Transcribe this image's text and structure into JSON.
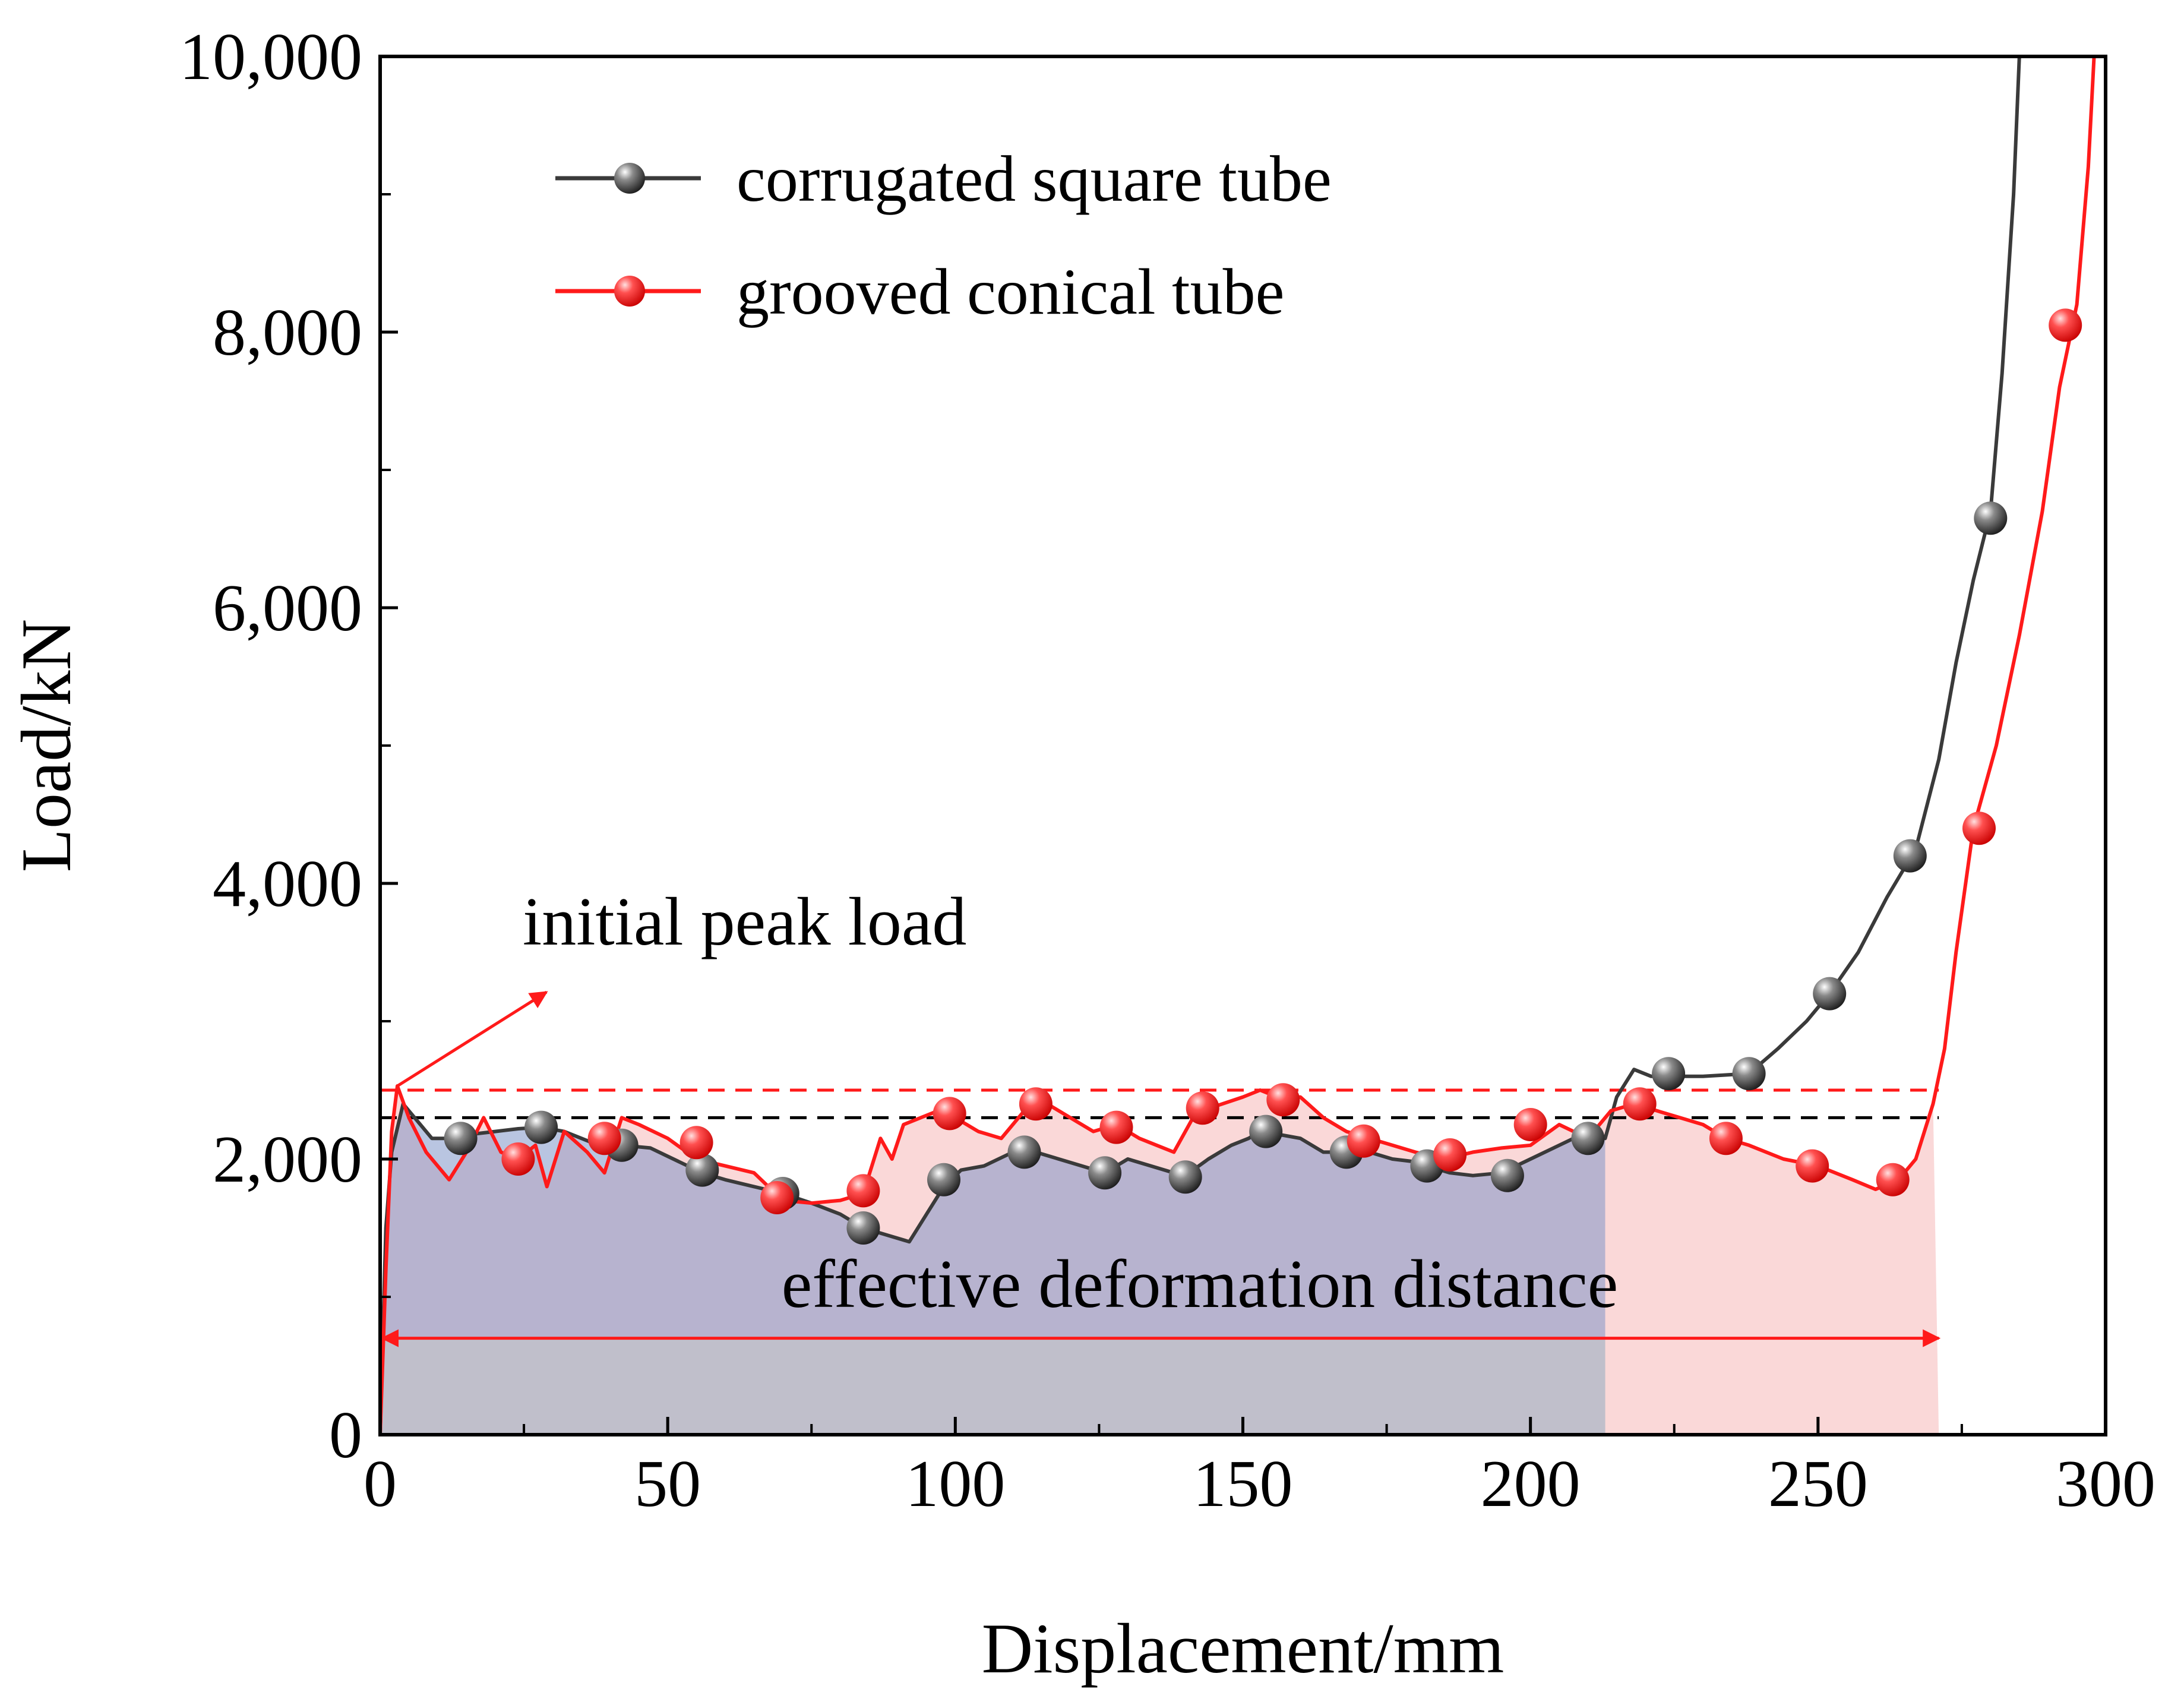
{
  "chart_data": {
    "type": "line",
    "title": "",
    "xlabel": "Displacement/mm",
    "ylabel": "Load/kN",
    "xlim": [
      0,
      300
    ],
    "ylim": [
      0,
      10000
    ],
    "xticks": [
      0,
      50,
      100,
      150,
      200,
      250,
      300
    ],
    "xtick_labels": [
      "0",
      "50",
      "100",
      "150",
      "200",
      "250",
      "300"
    ],
    "yticks": [
      0,
      2000,
      4000,
      6000,
      8000,
      10000
    ],
    "ytick_labels": [
      "0",
      "2,000",
      "4,000",
      "6,000",
      "8,000",
      "10,000"
    ],
    "grid": false,
    "legend_position": "top-left",
    "series": [
      {
        "name": "corrugated square tube",
        "color": "#3a3a3a",
        "marker_color": "#555555",
        "fill_end_x": 213,
        "fill_color": "#7f95c8",
        "line": [
          [
            0,
            0
          ],
          [
            1,
            1500
          ],
          [
            2,
            2050
          ],
          [
            4,
            2400
          ],
          [
            6,
            2300
          ],
          [
            9,
            2150
          ],
          [
            13,
            2150
          ],
          [
            16,
            2180
          ],
          [
            20,
            2200
          ],
          [
            24,
            2220
          ],
          [
            28,
            2230
          ],
          [
            32,
            2200
          ],
          [
            35,
            2150
          ],
          [
            38,
            2100
          ],
          [
            42,
            2100
          ],
          [
            47,
            2080
          ],
          [
            51,
            2000
          ],
          [
            56,
            1900
          ],
          [
            60,
            1850
          ],
          [
            65,
            1800
          ],
          [
            70,
            1750
          ],
          [
            75,
            1680
          ],
          [
            80,
            1600
          ],
          [
            84,
            1500
          ],
          [
            88,
            1450
          ],
          [
            92,
            1400
          ],
          [
            95,
            1600
          ],
          [
            98,
            1800
          ],
          [
            101,
            1920
          ],
          [
            105,
            1950
          ],
          [
            110,
            2050
          ],
          [
            114,
            2050
          ],
          [
            118,
            2000
          ],
          [
            122,
            1950
          ],
          [
            126,
            1900
          ],
          [
            130,
            2000
          ],
          [
            134,
            1950
          ],
          [
            138,
            1900
          ],
          [
            140,
            1880
          ],
          [
            144,
            2000
          ],
          [
            148,
            2100
          ],
          [
            151,
            2150
          ],
          [
            153,
            2200
          ],
          [
            156,
            2180
          ],
          [
            160,
            2150
          ],
          [
            164,
            2050
          ],
          [
            168,
            2050
          ],
          [
            172,
            2050
          ],
          [
            176,
            2000
          ],
          [
            180,
            1980
          ],
          [
            182,
            1950
          ],
          [
            186,
            1900
          ],
          [
            190,
            1880
          ],
          [
            195,
            1900
          ],
          [
            200,
            2000
          ],
          [
            205,
            2100
          ],
          [
            210,
            2200
          ],
          [
            213,
            2150
          ],
          [
            215,
            2450
          ],
          [
            218,
            2650
          ],
          [
            221,
            2600
          ],
          [
            225,
            2600
          ],
          [
            230,
            2600
          ],
          [
            238,
            2620
          ],
          [
            243,
            2800
          ],
          [
            248,
            3000
          ],
          [
            252,
            3200
          ],
          [
            257,
            3500
          ],
          [
            262,
            3900
          ],
          [
            267,
            4250
          ],
          [
            271,
            4900
          ],
          [
            274,
            5600
          ],
          [
            277,
            6200
          ],
          [
            280,
            6700
          ],
          [
            282,
            7700
          ],
          [
            284,
            9000
          ],
          [
            285,
            10000
          ]
        ],
        "markers": [
          [
            14,
            2150
          ],
          [
            28,
            2230
          ],
          [
            42,
            2100
          ],
          [
            56,
            1920
          ],
          [
            70,
            1750
          ],
          [
            84,
            1500
          ],
          [
            98,
            1850
          ],
          [
            112,
            2050
          ],
          [
            126,
            1900
          ],
          [
            140,
            1870
          ],
          [
            154,
            2200
          ],
          [
            168,
            2050
          ],
          [
            182,
            1950
          ],
          [
            196,
            1880
          ],
          [
            210,
            2150
          ],
          [
            224,
            2620
          ],
          [
            238,
            2620
          ],
          [
            252,
            3200
          ],
          [
            266,
            4200
          ],
          [
            280,
            6650
          ]
        ]
      },
      {
        "name": "grooved conical tube",
        "color": "#ff1a1a",
        "marker_color": "#ff2020",
        "fill_end_x": 271,
        "fill_color": "#f4a9a9",
        "line": [
          [
            0,
            0
          ],
          [
            1,
            1200
          ],
          [
            2,
            2200
          ],
          [
            3,
            2530
          ],
          [
            5,
            2300
          ],
          [
            8,
            2050
          ],
          [
            12,
            1850
          ],
          [
            15,
            2050
          ],
          [
            18,
            2300
          ],
          [
            21,
            2050
          ],
          [
            24,
            2000
          ],
          [
            27,
            2100
          ],
          [
            29,
            1800
          ],
          [
            32,
            2200
          ],
          [
            36,
            2050
          ],
          [
            39,
            1900
          ],
          [
            42,
            2300
          ],
          [
            45,
            2250
          ],
          [
            50,
            2150
          ],
          [
            55,
            2000
          ],
          [
            60,
            1950
          ],
          [
            65,
            1900
          ],
          [
            70,
            1700
          ],
          [
            75,
            1680
          ],
          [
            80,
            1700
          ],
          [
            84,
            1750
          ],
          [
            87,
            2150
          ],
          [
            89,
            2000
          ],
          [
            91,
            2250
          ],
          [
            94,
            2300
          ],
          [
            97,
            2350
          ],
          [
            100,
            2300
          ],
          [
            104,
            2200
          ],
          [
            108,
            2150
          ],
          [
            112,
            2350
          ],
          [
            116,
            2400
          ],
          [
            120,
            2300
          ],
          [
            124,
            2200
          ],
          [
            128,
            2250
          ],
          [
            132,
            2150
          ],
          [
            135,
            2100
          ],
          [
            138,
            2050
          ],
          [
            142,
            2350
          ],
          [
            145,
            2380
          ],
          [
            150,
            2450
          ],
          [
            153,
            2500
          ],
          [
            156,
            2450
          ],
          [
            160,
            2450
          ],
          [
            164,
            2300
          ],
          [
            168,
            2200
          ],
          [
            172,
            2150
          ],
          [
            176,
            2100
          ],
          [
            180,
            2050
          ],
          [
            185,
            2000
          ],
          [
            190,
            2050
          ],
          [
            195,
            2080
          ],
          [
            200,
            2100
          ],
          [
            205,
            2250
          ],
          [
            210,
            2150
          ],
          [
            214,
            2350
          ],
          [
            218,
            2400
          ],
          [
            222,
            2350
          ],
          [
            226,
            2300
          ],
          [
            230,
            2250
          ],
          [
            234,
            2150
          ],
          [
            238,
            2100
          ],
          [
            244,
            2000
          ],
          [
            250,
            1950
          ],
          [
            256,
            1850
          ],
          [
            260,
            1780
          ],
          [
            264,
            1850
          ],
          [
            267,
            2000
          ],
          [
            270,
            2400
          ],
          [
            272,
            2800
          ],
          [
            274,
            3500
          ],
          [
            277,
            4400
          ],
          [
            281,
            5000
          ],
          [
            285,
            5800
          ],
          [
            289,
            6700
          ],
          [
            292,
            7600
          ],
          [
            295,
            8200
          ],
          [
            297,
            9200
          ],
          [
            298,
            10000
          ]
        ],
        "markers": [
          [
            24,
            2000
          ],
          [
            39,
            2150
          ],
          [
            55,
            2120
          ],
          [
            69,
            1720
          ],
          [
            84,
            1770
          ],
          [
            99,
            2330
          ],
          [
            114,
            2400
          ],
          [
            128,
            2230
          ],
          [
            143,
            2370
          ],
          [
            157,
            2430
          ],
          [
            171,
            2130
          ],
          [
            186,
            2030
          ],
          [
            200,
            2250
          ],
          [
            219,
            2400
          ],
          [
            234,
            2150
          ],
          [
            249,
            1950
          ],
          [
            263,
            1850
          ],
          [
            278,
            4400
          ],
          [
            293,
            8050
          ]
        ]
      }
    ],
    "reference_lines": [
      {
        "y": 2500,
        "color": "#ff1a1a",
        "style": "dashed"
      },
      {
        "y": 2300,
        "color": "#000000",
        "style": "dashed"
      }
    ],
    "annotations": [
      {
        "name": "initial-peak-load",
        "text": "initial peak load",
        "point": [
          3,
          2530
        ]
      },
      {
        "name": "effective-deformation-distance",
        "text": "effective deformation distance",
        "from_x": 0,
        "to_x": 271,
        "y": 700
      }
    ]
  }
}
